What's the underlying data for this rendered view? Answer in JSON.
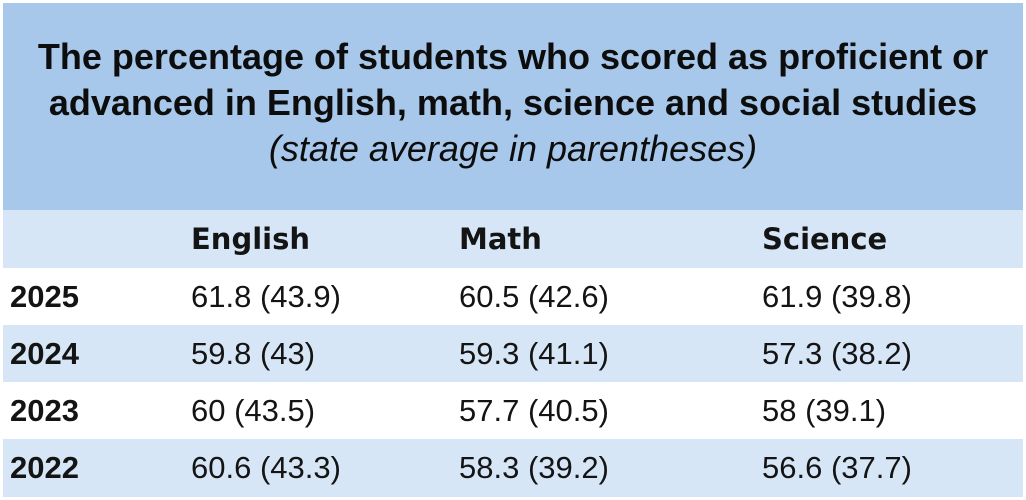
{
  "title": {
    "main": "The percentage of students who scored as proficient or advanced in English, math, science and social studies",
    "subtitle": "(state average in parentheses)"
  },
  "table": {
    "columns": [
      "",
      "English",
      "Math",
      "Science"
    ],
    "rows": [
      {
        "year": "2025",
        "english": "61.8 (43.9)",
        "math": "60.5 (42.6)",
        "science": "61.9 (39.8)"
      },
      {
        "year": "2024",
        "english": "59.8 (43)",
        "math": "59.3 (41.1)",
        "science": "57.3 (38.2)"
      },
      {
        "year": "2023",
        "english": "60 (43.5)",
        "math": "57.7 (40.5)",
        "science": "58 (39.1)"
      },
      {
        "year": "2022",
        "english": "60.6 (43.3)",
        "math": "58.3 (39.2)",
        "science": "56.6 (37.7)"
      }
    ]
  },
  "colors": {
    "title_band": "#a7c8ea",
    "header_row": "#d6e6f6",
    "alt_row": "#d6e6f6",
    "plain_row": "#ffffff",
    "text": "#141414"
  },
  "chart_data": {
    "type": "table",
    "title": "The percentage of students who scored as proficient or advanced in English, math, science and social studies (state average in parentheses)",
    "categories": [
      "2025",
      "2024",
      "2023",
      "2022"
    ],
    "columns": [
      "English",
      "Math",
      "Science"
    ],
    "series": [
      {
        "name": "English",
        "values": [
          61.8,
          59.8,
          60,
          60.6
        ],
        "state_average": [
          43.9,
          43,
          43.5,
          43.3
        ]
      },
      {
        "name": "Math",
        "values": [
          60.5,
          59.3,
          57.7,
          58.3
        ],
        "state_average": [
          42.6,
          41.1,
          40.5,
          39.2
        ]
      },
      {
        "name": "Science",
        "values": [
          61.9,
          57.3,
          58,
          56.6
        ],
        "state_average": [
          39.8,
          38.2,
          39.1,
          37.7
        ]
      }
    ]
  }
}
